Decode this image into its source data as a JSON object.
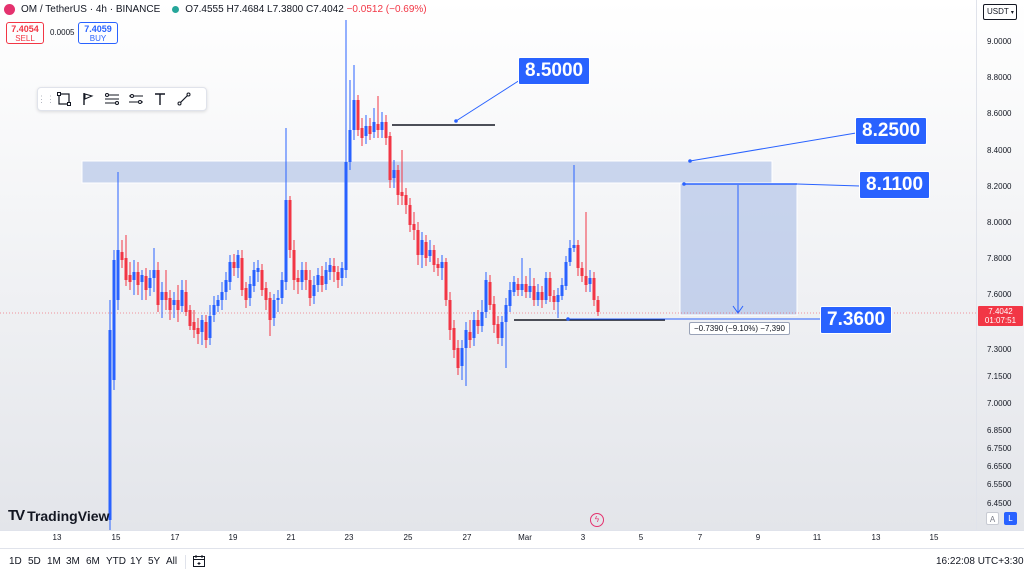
{
  "legend": {
    "symbol": "OM / TetherUS · 4h · BINANCE",
    "open": "O7.4555",
    "high": "H7.4684",
    "low": "L7.3800",
    "close": "C7.4042",
    "change": "−0.0512 (−0.69%)"
  },
  "trade": {
    "sell_price": "7.4054",
    "sell_label": "SELL",
    "spread": "0.0005",
    "buy_price": "7.4059",
    "buy_label": "BUY"
  },
  "currency": "USDT",
  "callouts": {
    "top": "8.5000",
    "zone_top": "8.2500",
    "zone_bottom": "8.1100",
    "target": "7.3600"
  },
  "measure_text": "−0.7390 (−9.10%) −7,390",
  "price_axis": [
    "9.0000",
    "8.8000",
    "8.6000",
    "8.4000",
    "8.2000",
    "8.0000",
    "7.8000",
    "7.6000",
    "7.4500",
    "7.3000",
    "7.1500",
    "7.0000",
    "6.8500",
    "6.7500",
    "6.6500",
    "6.5500",
    "6.4500"
  ],
  "current_price": {
    "value": "7.4042",
    "countdown": "01:07:51"
  },
  "time_axis": [
    "13",
    "15",
    "17",
    "19",
    "21",
    "23",
    "25",
    "27",
    "Mar",
    "3",
    "5",
    "7",
    "9",
    "11",
    "13",
    "15"
  ],
  "scale_buttons": {
    "auto": "A",
    "log": "L"
  },
  "ranges": [
    "1D",
    "5D",
    "1M",
    "3M",
    "6M",
    "YTD",
    "1Y",
    "5Y",
    "All"
  ],
  "clock": "16:22:08 UTC+3:30",
  "logo": "TradingView",
  "colors": {
    "up": "#2962ff",
    "down": "#f23645",
    "zone": "#b9c9ea",
    "callout": "#2962ff"
  },
  "icons": [
    "rectangle-tool-icon",
    "flag-tool-icon",
    "fib-tool-icon",
    "ruler-tool-icon",
    "text-tool-icon",
    "line-tool-icon",
    "calendar-icon",
    "lightning-icon"
  ]
}
